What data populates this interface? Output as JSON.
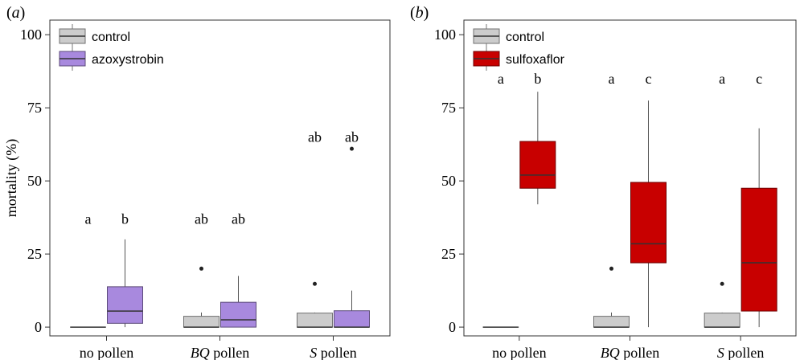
{
  "chart_data": [
    {
      "panel_label": "(a)",
      "type": "box",
      "ylabel": "mortality (%)",
      "ylim": [
        -3,
        105
      ],
      "yticks": [
        0,
        25,
        50,
        75,
        100
      ],
      "categories": [
        "no pollen",
        "BQ pollen",
        "S pollen"
      ],
      "category_labels": [
        {
          "italic": "",
          "rest": "no pollen"
        },
        {
          "italic": "BQ",
          "rest": " pollen"
        },
        {
          "italic": "S",
          "rest": " pollen"
        }
      ],
      "legend": {
        "position": "top-left"
      },
      "series": [
        {
          "name": "control",
          "color": "#cccccc",
          "boxes": [
            {
              "q1": 0,
              "median": 0,
              "q3": 0,
              "whisker_low": 0,
              "whisker_high": 0,
              "outliers": [],
              "letter": "a"
            },
            {
              "q1": 0,
              "median": 0,
              "q3": 3.7,
              "whisker_low": 0,
              "whisker_high": 5,
              "outliers": [
                20
              ],
              "letter": "ab"
            },
            {
              "q1": 0,
              "median": 0,
              "q3": 4.8,
              "whisker_low": 0,
              "whisker_high": 5,
              "outliers": [
                14.8
              ],
              "letter": "ab"
            }
          ]
        },
        {
          "name": "azoxystrobin",
          "color": "#a889de",
          "boxes": [
            {
              "q1": 1.3,
              "median": 5.5,
              "q3": 13.8,
              "whisker_low": 0,
              "whisker_high": 30,
              "outliers": [],
              "letter": "b"
            },
            {
              "q1": 0,
              "median": 2.5,
              "q3": 8.5,
              "whisker_low": 0,
              "whisker_high": 17.5,
              "outliers": [],
              "letter": "ab"
            },
            {
              "q1": 0,
              "median": 0,
              "q3": 5.6,
              "whisker_low": 0,
              "whisker_high": 12.5,
              "outliers": [
                61
              ],
              "letter": "ab"
            }
          ]
        }
      ],
      "letter_y": [
        37,
        37,
        65
      ]
    },
    {
      "panel_label": "(b)",
      "type": "box",
      "ylabel": "",
      "ylim": [
        -3,
        105
      ],
      "yticks": [
        0,
        25,
        50,
        75,
        100
      ],
      "categories": [
        "no pollen",
        "BQ pollen",
        "S pollen"
      ],
      "category_labels": [
        {
          "italic": "",
          "rest": "no pollen"
        },
        {
          "italic": "BQ",
          "rest": " pollen"
        },
        {
          "italic": "S",
          "rest": " pollen"
        }
      ],
      "legend": {
        "position": "top-left"
      },
      "series": [
        {
          "name": "control",
          "color": "#cccccc",
          "boxes": [
            {
              "q1": 0,
              "median": 0,
              "q3": 0,
              "whisker_low": 0,
              "whisker_high": 0,
              "outliers": [],
              "letter": "a"
            },
            {
              "q1": 0,
              "median": 0,
              "q3": 3.7,
              "whisker_low": 0,
              "whisker_high": 5,
              "outliers": [
                20
              ],
              "letter": "a"
            },
            {
              "q1": 0,
              "median": 0,
              "q3": 4.8,
              "whisker_low": 0,
              "whisker_high": 5,
              "outliers": [
                14.8
              ],
              "letter": "a"
            }
          ]
        },
        {
          "name": "sulfoxaflor",
          "color": "#c80000",
          "boxes": [
            {
              "q1": 47.5,
              "median": 52,
              "q3": 63.5,
              "whisker_low": 42,
              "whisker_high": 80.5,
              "outliers": [],
              "letter": "b"
            },
            {
              "q1": 22,
              "median": 28.5,
              "q3": 49.5,
              "whisker_low": 0,
              "whisker_high": 77.5,
              "outliers": [],
              "letter": "c"
            },
            {
              "q1": 5.5,
              "median": 22,
              "q3": 47.5,
              "whisker_low": 0,
              "whisker_high": 68,
              "outliers": [],
              "letter": "c"
            }
          ]
        }
      ],
      "letter_y": [
        85,
        85,
        85
      ]
    }
  ]
}
